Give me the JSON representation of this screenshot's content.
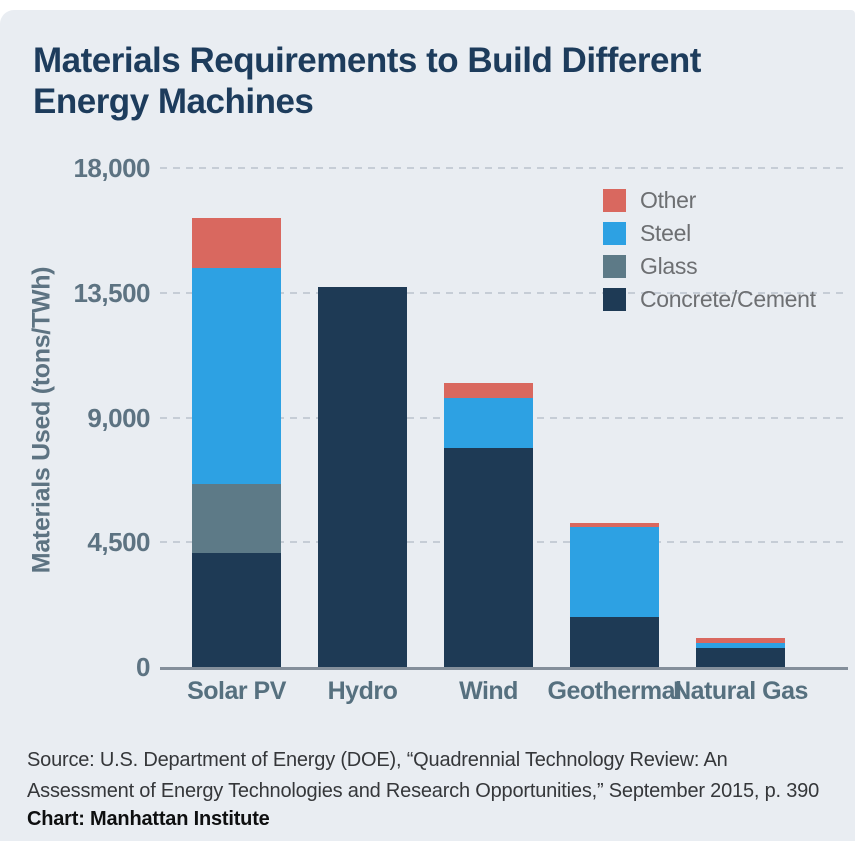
{
  "panel": {
    "background": "#e9edf2",
    "page_background": "#ffffff"
  },
  "title": {
    "line1": "Materials Requirements to Build Different",
    "line2": "Energy Machines",
    "color": "#1d3c5c"
  },
  "chart_data": {
    "type": "bar",
    "stacked": true,
    "title": "Materials Requirements to Build Different Energy Machines",
    "xlabel": "",
    "ylabel": "Materials Used (tons/TWh)",
    "ylim": [
      0,
      18000
    ],
    "yticks": [
      0,
      4500,
      9000,
      13500,
      18000
    ],
    "ytick_labels": [
      "0",
      "4,500",
      "9,000",
      "13,500",
      "18,000"
    ],
    "grid": "horizontal-dashed",
    "legend_position": "top-right",
    "categories": [
      "Solar PV",
      "Hydro",
      "Wind",
      "Geothermal",
      "Natural Gas"
    ],
    "series": [
      {
        "name": "Concrete/Cement",
        "color": "#1e3a55",
        "values": [
          4100,
          13700,
          7900,
          1800,
          700
        ]
      },
      {
        "name": "Glass",
        "color": "#5d7a87",
        "values": [
          2500,
          0,
          0,
          0,
          0
        ]
      },
      {
        "name": "Steel",
        "color": "#2da1e3",
        "values": [
          7800,
          0,
          1800,
          3250,
          150
        ]
      },
      {
        "name": "Other",
        "color": "#d9685f",
        "values": [
          1800,
          0,
          550,
          150,
          180
        ]
      }
    ],
    "totals": [
      16200,
      13700,
      10250,
      5200,
      1030
    ]
  },
  "legend": {
    "items": [
      {
        "label": "Other",
        "color": "#d9685f"
      },
      {
        "label": "Steel",
        "color": "#2da1e3"
      },
      {
        "label": "Glass",
        "color": "#5d7a87"
      },
      {
        "label": "Concrete/Cement",
        "color": "#1e3a55"
      }
    ]
  },
  "axis_colors": {
    "tick_label": "#5d7382",
    "gridline": "#c6cdd6",
    "axis_line": "#848f9b",
    "category_label": "#56707f"
  },
  "source": {
    "line1": "Source: U.S. Department of Energy (DOE), “Quadrennial Technology Review: An",
    "line2": "Assessment of Energy Technologies and Research Opportunities,” September 2015, p. 390",
    "credit": "Chart: Manhattan Institute"
  }
}
